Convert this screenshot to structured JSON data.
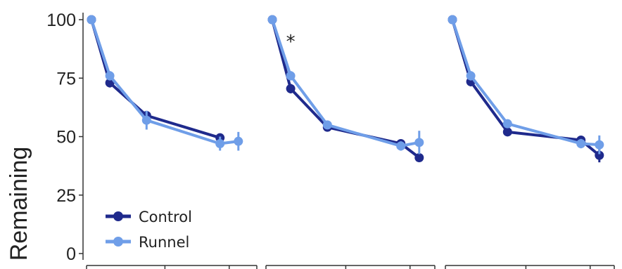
{
  "chart_data": {
    "type": "line",
    "ylabel": "Remaining",
    "ylim": [
      0,
      100
    ],
    "yticks": [
      "0",
      "25",
      "50",
      "75",
      "100"
    ],
    "grid": false,
    "legend": {
      "placement": "bottom-left",
      "entries": [
        "Control",
        "Runnel"
      ]
    },
    "colors": {
      "Control": "#1f2a8c",
      "Runnel": "#6f9ee8"
    },
    "panels": [
      {
        "series": [
          {
            "name": "Control",
            "x": [
              0,
              1,
              3,
              7
            ],
            "y": [
              100,
              73,
              59,
              49.5
            ],
            "err": [
              0.5,
              2,
              2,
              1.5
            ]
          },
          {
            "name": "Runnel",
            "x": [
              0,
              1,
              3,
              7,
              8
            ],
            "y": [
              100,
              76,
              57,
              47,
              48
            ],
            "err": [
              0.5,
              2,
              4,
              3,
              4
            ]
          }
        ],
        "annotations": []
      },
      {
        "series": [
          {
            "name": "Control",
            "x": [
              0,
              1,
              3,
              7,
              8
            ],
            "y": [
              100,
              70.5,
              54,
              47,
              41
            ],
            "err": [
              0.5,
              2,
              1.5,
              1.5,
              1.5
            ]
          },
          {
            "name": "Runnel",
            "x": [
              0,
              1,
              3,
              7,
              8
            ],
            "y": [
              100,
              76,
              55,
              46,
              47.5
            ],
            "err": [
              0.5,
              2,
              1.5,
              2,
              5
            ]
          }
        ],
        "annotations": [
          {
            "text": "*",
            "x": 1,
            "y": 88
          }
        ]
      },
      {
        "series": [
          {
            "name": "Control",
            "x": [
              0,
              1,
              3,
              7,
              8
            ],
            "y": [
              100,
              73.5,
              52,
              48.5,
              42
            ],
            "err": [
              0.5,
              2,
              1.5,
              1.5,
              3
            ]
          },
          {
            "name": "Runnel",
            "x": [
              0,
              1,
              3,
              7,
              8
            ],
            "y": [
              100,
              76,
              55.5,
              47,
              46.5
            ],
            "err": [
              0.5,
              2,
              1.5,
              2,
              4
            ]
          }
        ],
        "annotations": []
      }
    ]
  }
}
